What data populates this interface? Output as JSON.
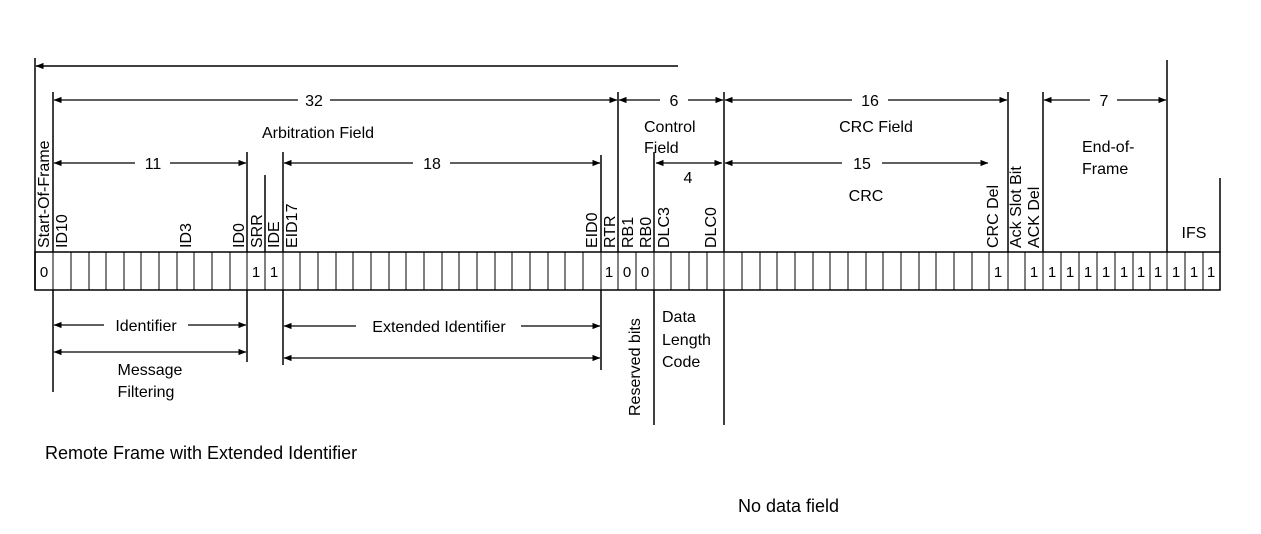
{
  "caption": "Remote Frame with Extended Identifier",
  "note": "No data field",
  "counts": {
    "total32": "32",
    "control6": "6",
    "crc16": "16",
    "eof7": "7",
    "id11": "11",
    "eid18": "18",
    "dlc4": "4",
    "crc15": "15"
  },
  "field_labels": {
    "arbitration": "Arbitration Field",
    "control_line1": "Control",
    "control_line2": "Field",
    "crc_field": "CRC Field",
    "crc": "CRC",
    "eof_line1": "End-of-",
    "eof_line2": "Frame",
    "ifs": "IFS"
  },
  "bit_names": {
    "sof": "Start-Of-Frame",
    "id10": "ID10",
    "id3": "ID3",
    "id0": "ID0",
    "srr": "SRR",
    "ide": "IDE",
    "eid17": "EID17",
    "eid0": "EID0",
    "rtr": "RTR",
    "rb1": "RB1",
    "rb0": "RB0",
    "dlc3": "DLC3",
    "dlc0": "DLC0",
    "crc_del": "CRC Del",
    "ack_slot": "Ack Slot Bit",
    "ack_del": "ACK Del"
  },
  "bit_values": [
    "0",
    "1",
    "1",
    "1",
    "0",
    "0",
    "1",
    "1",
    "1",
    "1",
    "1",
    "1",
    "1",
    "1",
    "1",
    "1",
    "1",
    "1"
  ],
  "below_labels": {
    "identifier": "Identifier",
    "extended_identifier": "Extended Identifier",
    "message_line1": "Message",
    "message_line2": "Filtering",
    "reserved_bits": "Reserved bits",
    "dlc_line1": "Data",
    "dlc_line2": "Length",
    "dlc_line3": "Code"
  }
}
